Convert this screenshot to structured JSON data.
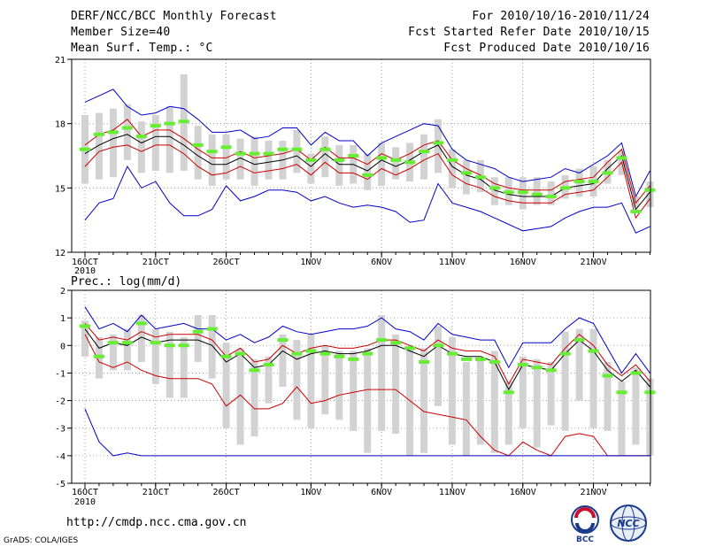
{
  "header": {
    "title": "DERF/NCC/BCC Monthly Forecast",
    "member_size": "Member Size=40",
    "variable": "Mean Surf. Temp.: °C",
    "period": "For 2010/10/16-2010/11/24",
    "started": "Fcst Started Refer Date 2010/10/15",
    "produced": "Fcst Produced Date 2010/10/16"
  },
  "footer": {
    "url": "http://cmdp.ncc.cma.gov.cn",
    "credit": "GrADS: COLA/IGES",
    "logo_bcc": "BCC",
    "logo_ncc": "NCC"
  },
  "colors": {
    "box": "#d2d2d2",
    "green": "#66ee33",
    "ens_mean": "#000000",
    "spread": "#cc0000",
    "extremes": "#0000cc"
  },
  "chart_data": [
    {
      "type": "line",
      "title": "Mean Surf. Temp.: °C",
      "x_tick_labels": [
        "16OCT",
        "21OCT",
        "26OCT",
        "1NOV",
        "6NOV",
        "11NOV",
        "16NOV",
        "21NOV"
      ],
      "x_tick_index": [
        0,
        5,
        10,
        16,
        21,
        26,
        31,
        36
      ],
      "x_sublabel": "2010",
      "ylim": [
        12,
        21
      ],
      "y_ticks": [
        "12",
        "15",
        "18",
        "21"
      ],
      "series": [
        {
          "name": "ensemble mean",
          "values": [
            16.6,
            17.0,
            17.3,
            17.5,
            17.1,
            17.4,
            17.4,
            17.0,
            16.5,
            16.1,
            16.1,
            16.4,
            16.1,
            16.2,
            16.3,
            16.5,
            16.0,
            16.6,
            16.1,
            16.1,
            15.8,
            16.3,
            16.0,
            16.3,
            16.7,
            17.0,
            16.0,
            15.6,
            15.4,
            14.9,
            14.7,
            14.6,
            14.6,
            14.6,
            15.0,
            15.1,
            15.2,
            15.9,
            16.5,
            14.0,
            14.8
          ]
        },
        {
          "name": "upper spread",
          "values": [
            17.0,
            17.5,
            17.7,
            18.2,
            17.4,
            17.7,
            17.7,
            17.3,
            16.8,
            16.4,
            16.4,
            16.7,
            16.4,
            16.5,
            16.6,
            16.8,
            16.3,
            16.9,
            16.4,
            16.4,
            16.1,
            16.6,
            16.3,
            16.6,
            17.0,
            17.2,
            16.3,
            15.9,
            15.6,
            15.2,
            15.0,
            14.9,
            14.9,
            14.9,
            15.3,
            15.4,
            15.5,
            16.2,
            16.8,
            14.3,
            15.1
          ]
        },
        {
          "name": "lower spread",
          "values": [
            16.0,
            16.7,
            16.9,
            17.0,
            16.7,
            17.0,
            17.0,
            16.6,
            16.0,
            15.6,
            15.7,
            16.0,
            15.7,
            15.8,
            15.9,
            16.1,
            15.6,
            16.2,
            15.7,
            15.7,
            15.4,
            15.9,
            15.6,
            15.9,
            16.3,
            16.6,
            15.6,
            15.2,
            15.0,
            14.6,
            14.4,
            14.3,
            14.3,
            14.3,
            14.7,
            14.8,
            14.9,
            15.5,
            16.2,
            13.6,
            14.5
          ]
        },
        {
          "name": "member max",
          "values": [
            19.0,
            19.3,
            19.6,
            18.8,
            18.4,
            18.5,
            18.8,
            18.7,
            18.2,
            17.6,
            17.6,
            17.7,
            17.3,
            17.4,
            17.8,
            17.8,
            17.0,
            17.6,
            17.2,
            17.2,
            16.5,
            17.1,
            17.4,
            17.7,
            18.0,
            17.9,
            16.8,
            16.3,
            16.1,
            15.9,
            15.5,
            15.3,
            15.4,
            15.5,
            15.9,
            15.7,
            16.1,
            16.5,
            17.1,
            14.6,
            15.8
          ]
        },
        {
          "name": "member min",
          "values": [
            13.5,
            14.3,
            14.5,
            16.0,
            15.0,
            15.3,
            14.3,
            13.7,
            13.7,
            14.0,
            15.1,
            14.4,
            14.6,
            14.9,
            14.9,
            14.8,
            14.4,
            14.6,
            14.3,
            14.1,
            14.2,
            14.1,
            13.9,
            13.4,
            13.5,
            15.2,
            14.3,
            14.1,
            13.9,
            13.6,
            13.3,
            13.0,
            13.1,
            13.2,
            13.6,
            13.9,
            14.1,
            14.1,
            14.3,
            12.9,
            13.2
          ]
        },
        {
          "name": "green markers",
          "values": [
            16.8,
            17.5,
            17.6,
            17.8,
            17.4,
            17.9,
            18.0,
            18.1,
            17.0,
            16.7,
            16.9,
            16.6,
            16.6,
            16.6,
            16.8,
            16.8,
            16.3,
            16.8,
            16.3,
            16.5,
            15.6,
            16.4,
            16.3,
            16.2,
            16.7,
            17.1,
            16.3,
            15.7,
            15.5,
            15.0,
            14.8,
            14.8,
            14.7,
            14.6,
            15.0,
            15.3,
            15.3,
            15.7,
            16.4,
            13.9,
            14.9
          ]
        }
      ],
      "box_ranges": [
        [
          15.2,
          18.4
        ],
        [
          15.4,
          18.5
        ],
        [
          15.5,
          18.7
        ],
        [
          16.3,
          18.9
        ],
        [
          15.7,
          18.1
        ],
        [
          15.8,
          18.4
        ],
        [
          15.7,
          18.8
        ],
        [
          15.8,
          20.3
        ],
        [
          15.4,
          17.9
        ],
        [
          15.1,
          17.5
        ],
        [
          15.4,
          17.5
        ],
        [
          15.4,
          17.3
        ],
        [
          15.1,
          17.4
        ],
        [
          15.4,
          17.2
        ],
        [
          15.4,
          17.2
        ],
        [
          15.7,
          17.7
        ],
        [
          15.2,
          16.6
        ],
        [
          15.5,
          17.4
        ],
        [
          15.1,
          17.0
        ],
        [
          15.2,
          17.0
        ],
        [
          14.9,
          16.6
        ],
        [
          15.1,
          17.1
        ],
        [
          15.4,
          16.9
        ],
        [
          15.3,
          17.1
        ],
        [
          15.4,
          17.5
        ],
        [
          15.7,
          18.2
        ],
        [
          15.0,
          16.8
        ],
        [
          14.7,
          16.3
        ],
        [
          14.8,
          16.3
        ],
        [
          14.2,
          15.5
        ],
        [
          14.2,
          15.5
        ],
        [
          14.0,
          15.5
        ],
        [
          14.2,
          15.5
        ],
        [
          14.2,
          15.3
        ],
        [
          14.5,
          15.6
        ],
        [
          14.6,
          15.9
        ],
        [
          14.6,
          16.0
        ],
        [
          15.2,
          16.3
        ],
        [
          15.6,
          16.7
        ],
        [
          14.1,
          14.6
        ],
        [
          14.1,
          15.3
        ]
      ]
    },
    {
      "type": "line",
      "title": "Prec.: log(mm/d)",
      "x_tick_labels": [
        "16OCT",
        "21OCT",
        "26OCT",
        "1NOV",
        "6NOV",
        "11NOV",
        "16NOV",
        "21NOV"
      ],
      "x_tick_index": [
        0,
        5,
        10,
        16,
        21,
        26,
        31,
        36
      ],
      "x_sublabel": "2010",
      "ylim": [
        -5,
        2
      ],
      "y_ticks": [
        "-5",
        "-4",
        "-3",
        "-2",
        "-1",
        "0",
        "1",
        "2"
      ],
      "series": [
        {
          "name": "ensemble mean",
          "values": [
            0.6,
            -0.1,
            0.1,
            0.0,
            0.3,
            0.1,
            0.2,
            0.2,
            0.2,
            0.0,
            -0.6,
            -0.3,
            -0.8,
            -0.7,
            -0.2,
            -0.5,
            -0.3,
            -0.2,
            -0.3,
            -0.3,
            -0.2,
            0.0,
            0.0,
            -0.2,
            -0.4,
            0.0,
            -0.3,
            -0.4,
            -0.4,
            -0.6,
            -1.6,
            -0.7,
            -0.8,
            -0.9,
            -0.3,
            0.2,
            -0.2,
            -0.9,
            -1.3,
            -0.9,
            -1.5
          ]
        },
        {
          "name": "upper spread",
          "values": [
            0.8,
            0.2,
            0.3,
            0.2,
            0.5,
            0.3,
            0.4,
            0.4,
            0.4,
            0.2,
            -0.4,
            -0.1,
            -0.6,
            -0.5,
            0.0,
            -0.3,
            -0.1,
            0.0,
            -0.1,
            -0.1,
            0.0,
            0.2,
            0.2,
            0.0,
            -0.2,
            0.2,
            -0.1,
            -0.2,
            -0.2,
            -0.4,
            -1.4,
            -0.5,
            -0.6,
            -0.7,
            -0.1,
            0.4,
            0.0,
            -0.7,
            -1.1,
            -0.7,
            -1.3
          ]
        },
        {
          "name": "lower spread",
          "values": [
            0.4,
            -0.6,
            -0.8,
            -0.6,
            -0.9,
            -1.1,
            -1.2,
            -1.2,
            -1.2,
            -1.4,
            -2.2,
            -1.8,
            -2.3,
            -2.3,
            -2.1,
            -1.5,
            -2.1,
            -2.0,
            -1.8,
            -1.7,
            -1.6,
            -1.6,
            -1.6,
            -2.0,
            -2.4,
            -2.5,
            -2.6,
            -2.7,
            -3.3,
            -3.8,
            -4.0,
            -3.5,
            -3.8,
            -4.0,
            -3.3,
            -3.2,
            -3.3,
            -4.0,
            -4.0,
            -4.0,
            -4.0
          ]
        },
        {
          "name": "member max",
          "values": [
            1.4,
            0.6,
            0.8,
            0.5,
            1.1,
            0.6,
            0.7,
            0.8,
            0.6,
            0.6,
            0.2,
            0.4,
            0.1,
            0.3,
            0.7,
            0.5,
            0.4,
            0.5,
            0.6,
            0.6,
            0.7,
            1.0,
            0.6,
            0.5,
            0.2,
            0.8,
            0.4,
            0.3,
            0.2,
            0.2,
            -0.8,
            0.1,
            0.1,
            0.1,
            0.6,
            1.0,
            0.8,
            -0.1,
            -1.0,
            -0.3,
            -1.0
          ]
        },
        {
          "name": "member min",
          "values": [
            -2.3,
            -3.5,
            -4.0,
            -3.9,
            -4.0,
            -4.0,
            -4.0,
            -4.0,
            -4.0,
            -4.0,
            -4.0,
            -4.0,
            -4.0,
            -4.0,
            -4.0,
            -4.0,
            -4.0,
            -4.0,
            -4.0,
            -4.0,
            -4.0,
            -4.0,
            -4.0,
            -4.0,
            -4.0,
            -4.0,
            -4.0,
            -4.0,
            -4.0,
            -4.0,
            -4.0,
            -4.0,
            -4.0,
            -4.0,
            -4.0,
            -4.0,
            -4.0,
            -4.0,
            -4.0,
            -4.0,
            -4.0
          ]
        },
        {
          "name": "green markers",
          "values": [
            0.7,
            -0.4,
            0.1,
            0.1,
            0.8,
            0.1,
            0.0,
            0.0,
            0.5,
            0.6,
            -0.4,
            -0.3,
            -0.9,
            -0.7,
            0.2,
            -0.3,
            -0.2,
            -0.3,
            -0.4,
            -0.5,
            -0.3,
            0.2,
            0.1,
            -0.1,
            -0.6,
            0.0,
            -0.3,
            -0.5,
            -0.5,
            -0.6,
            -1.7,
            -0.7,
            -0.8,
            -0.9,
            -0.3,
            0.2,
            -0.2,
            -1.1,
            -1.7,
            -1.0,
            -1.7
          ]
        }
      ],
      "box_ranges": [
        [
          -0.4,
          0.9
        ],
        [
          -1.2,
          0.3
        ],
        [
          -0.9,
          0.4
        ],
        [
          -0.9,
          0.6
        ],
        [
          -0.6,
          1.1
        ],
        [
          -1.4,
          0.6
        ],
        [
          -1.9,
          0.5
        ],
        [
          -1.9,
          0.3
        ],
        [
          -0.6,
          1.1
        ],
        [
          -1.2,
          1.1
        ],
        [
          -3.0,
          0.1
        ],
        [
          -3.6,
          -0.1
        ],
        [
          -3.3,
          -0.5
        ],
        [
          -2.1,
          -0.4
        ],
        [
          -1.5,
          0.4
        ],
        [
          -2.7,
          0.2
        ],
        [
          -3.0,
          0.4
        ],
        [
          -2.5,
          0.0
        ],
        [
          -2.7,
          -0.2
        ],
        [
          -3.1,
          -0.2
        ],
        [
          -3.9,
          -0.1
        ],
        [
          -3.1,
          1.1
        ],
        [
          -3.2,
          0.4
        ],
        [
          -4.0,
          0.0
        ],
        [
          -3.9,
          -0.1
        ],
        [
          -2.2,
          0.7
        ],
        [
          -3.6,
          0.3
        ],
        [
          -4.0,
          -0.6
        ],
        [
          -3.6,
          -0.5
        ],
        [
          -3.9,
          -0.2
        ],
        [
          -3.6,
          -1.3
        ],
        [
          -3.0,
          -0.4
        ],
        [
          -3.7,
          -0.5
        ],
        [
          -2.9,
          -0.6
        ],
        [
          -3.1,
          0.5
        ],
        [
          -2.0,
          0.6
        ],
        [
          -3.0,
          0.6
        ],
        [
          -3.1,
          -0.6
        ],
        [
          -4.0,
          -1.3
        ],
        [
          -3.6,
          -0.8
        ],
        [
          -4.0,
          -1.2
        ]
      ]
    }
  ]
}
